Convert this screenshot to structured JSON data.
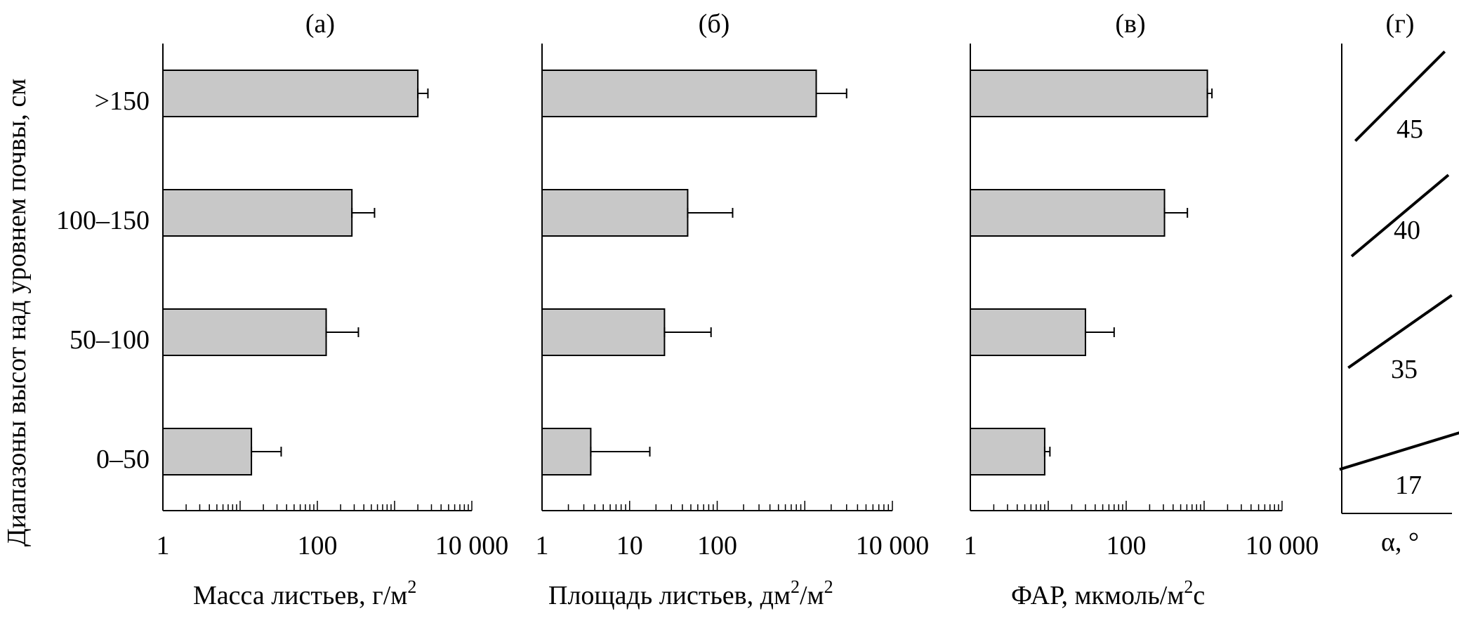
{
  "figure": {
    "ylabel": "Диапазоны высот над уровнем почвы, см",
    "categories": [
      ">150",
      "100–150",
      "50–100",
      "0–50"
    ]
  },
  "chart_data": [
    {
      "type": "bar",
      "orientation": "horizontal",
      "panel": "(а)",
      "xlabel": "Масса листьев, г/м²",
      "xlabel_main": "Масса листьев, г/м",
      "xlabel_sup": "2",
      "xscale": "log",
      "xlim": [
        1,
        10000
      ],
      "xticks": [
        1,
        100,
        10000
      ],
      "xticklabels": [
        "1",
        "100",
        "10 000"
      ],
      "categories": [
        ">150",
        "100–150",
        "50–100",
        "0–50"
      ],
      "values": [
        2000,
        280,
        130,
        14
      ],
      "error_plus": [
        700,
        270,
        210,
        20
      ]
    },
    {
      "type": "bar",
      "orientation": "horizontal",
      "panel": "(б)",
      "xlabel": "Площадь листьев, дм²/м²",
      "xlabel_main": "Площадь листьев, дм",
      "xlabel_mid": "/м",
      "xlabel_sup": "2",
      "xscale": "log",
      "xlim": [
        1,
        10000
      ],
      "xticks": [
        1,
        10,
        100,
        10000
      ],
      "xticklabels": [
        "1",
        "10",
        "100",
        "10 000"
      ],
      "categories": [
        ">150",
        "100–150",
        "50–100",
        "0–50"
      ],
      "values": [
        1350,
        46,
        25,
        3.6
      ],
      "error_plus": [
        1650,
        104,
        60,
        13.4
      ]
    },
    {
      "type": "bar",
      "orientation": "horizontal",
      "panel": "(в)",
      "xlabel": "ФАР, мкмоль/м²с",
      "xlabel_main": "ФАР, мкмоль/м",
      "xlabel_sup": "2",
      "xlabel_tail": "с",
      "xscale": "log",
      "xlim": [
        1,
        10000
      ],
      "xticks": [
        1,
        100,
        10000
      ],
      "xticklabels": [
        "1",
        "100",
        "10 000"
      ],
      "categories": [
        ">150",
        "100–150",
        "50–100",
        "0–50"
      ],
      "values": [
        1100,
        310,
        30,
        9
      ],
      "error_plus": [
        160,
        300,
        40,
        1.5
      ]
    },
    {
      "type": "line",
      "panel": "(г)",
      "xlabel": "α, °",
      "categories": [
        ">150",
        "100–150",
        "50–100",
        "0–50"
      ],
      "values": [
        45,
        40,
        35,
        17
      ],
      "labels": [
        "45",
        "40",
        "35",
        "17"
      ]
    }
  ]
}
